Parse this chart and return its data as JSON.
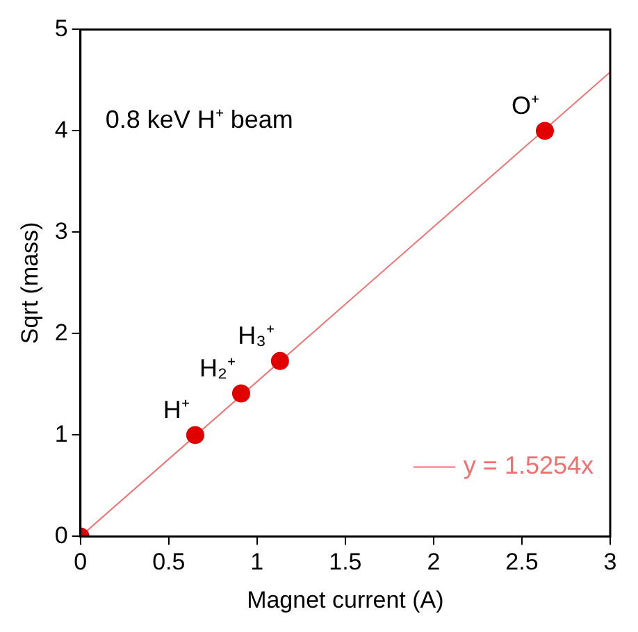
{
  "chart_data": {
    "type": "scatter",
    "xlabel": "Magnet current (A)",
    "ylabel": "Sqrt (mass)",
    "series": [
      {
        "color": "#e00000",
        "marker": "circle",
        "x": [
          0,
          0.65,
          0.91,
          1.13,
          2.63
        ],
        "values": [
          0,
          1,
          1.41,
          1.73,
          4
        ]
      },
      {
        "type": "line",
        "name": "y = 1.5254x",
        "color": "#f07070",
        "x": [
          0,
          3
        ],
        "values": [
          0,
          4.58
        ]
      }
    ],
    "xlim": [
      0,
      3
    ],
    "xticks": [
      0,
      0.5,
      1,
      1.5,
      2,
      2.5,
      3
    ],
    "ylim": [
      0,
      5
    ],
    "yticks": [
      0,
      1,
      2,
      3,
      4,
      5
    ],
    "grid": false,
    "legend": "bottom right",
    "annotations": [
      "0.8 keV H⁺ beam",
      {
        "text": "H⁺",
        "x": 0.65,
        "y": 1
      },
      {
        "text": "H₂⁺",
        "x": 0.91,
        "y": 1.414
      },
      {
        "text": "H₃⁺",
        "x": 1.13,
        "y": 1.732
      },
      {
        "text": "O⁺",
        "x": 2.63,
        "y": 4
      }
    ]
  }
}
